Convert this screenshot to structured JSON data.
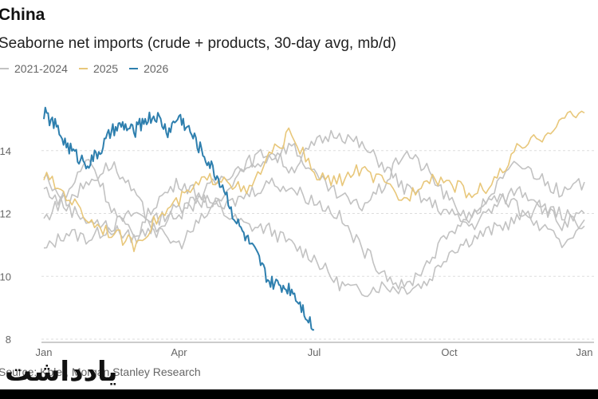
{
  "header": {
    "title": "China",
    "subtitle": "Seaborne net imports (crude + products, 30-day avg, mb/d)"
  },
  "footer": {
    "source": "Source: Kpler, Morgan Stanley Research",
    "watermark": "یادداشت"
  },
  "colors": {
    "historical": "#c2c2c2",
    "y2025": "#e8c77a",
    "y2026": "#2e7fae",
    "grid": "#dddddd",
    "axis": "#999999"
  },
  "chart_data": {
    "type": "line",
    "title": "China",
    "subtitle": "Seaborne net imports (crude + products, 30-day avg, mb/d)",
    "xlabel": "",
    "ylabel": "",
    "x_ticks": [
      "Jan",
      "Apr",
      "Jul",
      "Oct",
      "Jan"
    ],
    "x_domain_months": [
      0,
      12
    ],
    "y_ticks": [
      8,
      10,
      12,
      14
    ],
    "ylim": [
      8,
      16
    ],
    "grid": "horizontal",
    "legend_position": "top-left",
    "legend": [
      "2021-2024",
      "2025",
      "2026"
    ],
    "series": [
      {
        "name": "2021-2024",
        "group": "historical",
        "x": [
          0,
          0.5,
          1,
          1.5,
          2,
          2.5,
          3,
          3.5,
          4,
          4.5,
          5,
          5.5,
          6,
          6.5,
          7,
          7.5,
          8,
          8.5,
          9,
          9.5,
          10,
          10.5,
          11,
          11.5,
          12
        ],
        "values": [
          10.8,
          11.4,
          11.2,
          11.6,
          12.0,
          11.8,
          12.2,
          12.6,
          12.0,
          11.6,
          11.5,
          11.0,
          10.6,
          9.8,
          9.5,
          9.7,
          9.6,
          9.8,
          10.8,
          11.2,
          11.5,
          11.8,
          12.2,
          12.0,
          11.6
        ]
      },
      {
        "name": "2021-2024",
        "group": "historical",
        "x": [
          0,
          0.5,
          1,
          1.5,
          2,
          2.5,
          3,
          3.5,
          4,
          4.5,
          5,
          5.5,
          6,
          6.5,
          7,
          7.5,
          8,
          8.5,
          9,
          9.5,
          10,
          10.5,
          11,
          11.5,
          12
        ],
        "values": [
          11.8,
          12.6,
          13.8,
          12.2,
          11.2,
          12.4,
          13.0,
          12.6,
          13.2,
          13.6,
          14.0,
          13.4,
          14.2,
          14.6,
          14.2,
          13.6,
          12.8,
          12.4,
          12.0,
          11.6,
          12.2,
          12.8,
          12.4,
          11.6,
          12.0
        ]
      },
      {
        "name": "2021-2024",
        "group": "historical",
        "x": [
          0,
          0.5,
          1,
          1.5,
          2,
          2.5,
          3,
          3.5,
          4,
          4.5,
          5,
          5.5,
          6,
          6.5,
          7,
          7.5,
          8,
          8.5,
          9,
          9.5,
          10,
          10.5,
          11,
          11.5,
          12
        ],
        "values": [
          12.8,
          12.2,
          11.8,
          11.5,
          11.2,
          11.6,
          12.0,
          12.4,
          12.2,
          12.6,
          13.0,
          12.8,
          12.4,
          12.0,
          11.0,
          10.2,
          9.6,
          10.4,
          11.4,
          12.0,
          12.6,
          12.2,
          11.6,
          11.0,
          11.8
        ]
      },
      {
        "name": "2021-2024",
        "group": "historical",
        "x": [
          0,
          0.5,
          1,
          1.5,
          2,
          2.5,
          3,
          3.5,
          4,
          4.5,
          5,
          5.5,
          6,
          6.5,
          7,
          7.5,
          8,
          8.5,
          9,
          9.5,
          10,
          10.5,
          11,
          11.5,
          12
        ],
        "values": [
          13.2,
          12.4,
          13.0,
          13.6,
          12.6,
          11.4,
          11.0,
          11.8,
          12.6,
          13.4,
          13.8,
          14.2,
          13.2,
          12.6,
          12.2,
          12.8,
          14.0,
          13.4,
          12.4,
          11.8,
          12.8,
          13.6,
          13.2,
          12.6,
          13.0
        ]
      },
      {
        "name": "2025",
        "group": "y2025",
        "x": [
          0,
          0.5,
          1,
          1.5,
          2,
          2.5,
          3,
          3.5,
          4,
          4.5,
          5,
          5.5,
          6,
          6.5,
          7,
          7.5,
          8,
          8.5,
          9,
          9.5,
          10,
          10.5,
          11,
          11.5,
          12
        ],
        "values": [
          13.2,
          12.6,
          11.8,
          11.4,
          11.0,
          11.8,
          12.4,
          13.0,
          13.2,
          12.6,
          13.8,
          14.6,
          13.2,
          13.0,
          13.4,
          13.0,
          12.4,
          13.2,
          13.0,
          12.6,
          13.0,
          14.0,
          14.4,
          15.0,
          15.2
        ]
      },
      {
        "name": "2026",
        "group": "y2026",
        "x": [
          0,
          0.25,
          0.5,
          0.75,
          1,
          1.25,
          1.5,
          1.75,
          2,
          2.25,
          2.5,
          2.75,
          3,
          3.25,
          3.5,
          3.75,
          4,
          4.25,
          4.5,
          4.75,
          5,
          5.25,
          5.5,
          5.75,
          6
        ],
        "values": [
          15.2,
          14.8,
          14.2,
          13.8,
          13.6,
          14.0,
          14.6,
          14.8,
          14.6,
          15.0,
          15.1,
          14.6,
          15.1,
          14.6,
          14.0,
          13.4,
          12.8,
          11.8,
          11.2,
          10.6,
          9.8,
          9.7,
          9.6,
          9.0,
          8.3
        ]
      }
    ]
  }
}
